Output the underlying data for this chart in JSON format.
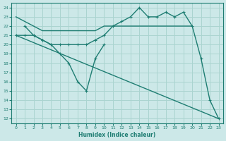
{
  "line1_nomarker": {
    "x": [
      0,
      1,
      2,
      3,
      4,
      5,
      6,
      7,
      8,
      9,
      10,
      11,
      12,
      13,
      14,
      15,
      16,
      17,
      18,
      19,
      20
    ],
    "y": [
      23,
      22.5,
      22,
      21.5,
      21.5,
      21.5,
      21.5,
      21.5,
      21.5,
      21.5,
      22,
      22,
      22,
      22,
      22,
      22,
      22,
      22,
      22,
      22,
      22
    ]
  },
  "line2_markers": {
    "x": [
      0,
      1,
      2,
      3,
      4,
      5,
      6,
      7,
      8,
      9,
      10,
      11,
      12,
      13,
      14,
      15,
      16,
      17,
      18,
      19,
      20,
      21,
      22,
      23
    ],
    "y": [
      21,
      21,
      21,
      20.5,
      20,
      20,
      20,
      20,
      20,
      20.5,
      21,
      22,
      22.5,
      23,
      24,
      23,
      23,
      23.5,
      23,
      23.5,
      22,
      18.5,
      14,
      12
    ]
  },
  "line3_zigzag": {
    "x": [
      1,
      2,
      3,
      4,
      5,
      6,
      7,
      8,
      9,
      10
    ],
    "y": [
      22,
      21,
      20.5,
      20,
      19,
      18,
      16,
      15,
      18.5,
      20
    ]
  },
  "line4_diagonal": {
    "x": [
      0,
      23
    ],
    "y": [
      21,
      12
    ]
  },
  "color": "#1e7d72",
  "bg_color": "#cce8e8",
  "grid_color": "#aad4d0",
  "xlabel": "Humidex (Indice chaleur)",
  "xlim": [
    -0.5,
    23.5
  ],
  "ylim": [
    11.5,
    24.5
  ],
  "yticks": [
    12,
    13,
    14,
    15,
    16,
    17,
    18,
    19,
    20,
    21,
    22,
    23,
    24
  ],
  "xticks": [
    0,
    1,
    2,
    3,
    4,
    5,
    6,
    7,
    8,
    9,
    10,
    11,
    12,
    13,
    14,
    15,
    16,
    17,
    18,
    19,
    20,
    21,
    22,
    23
  ]
}
